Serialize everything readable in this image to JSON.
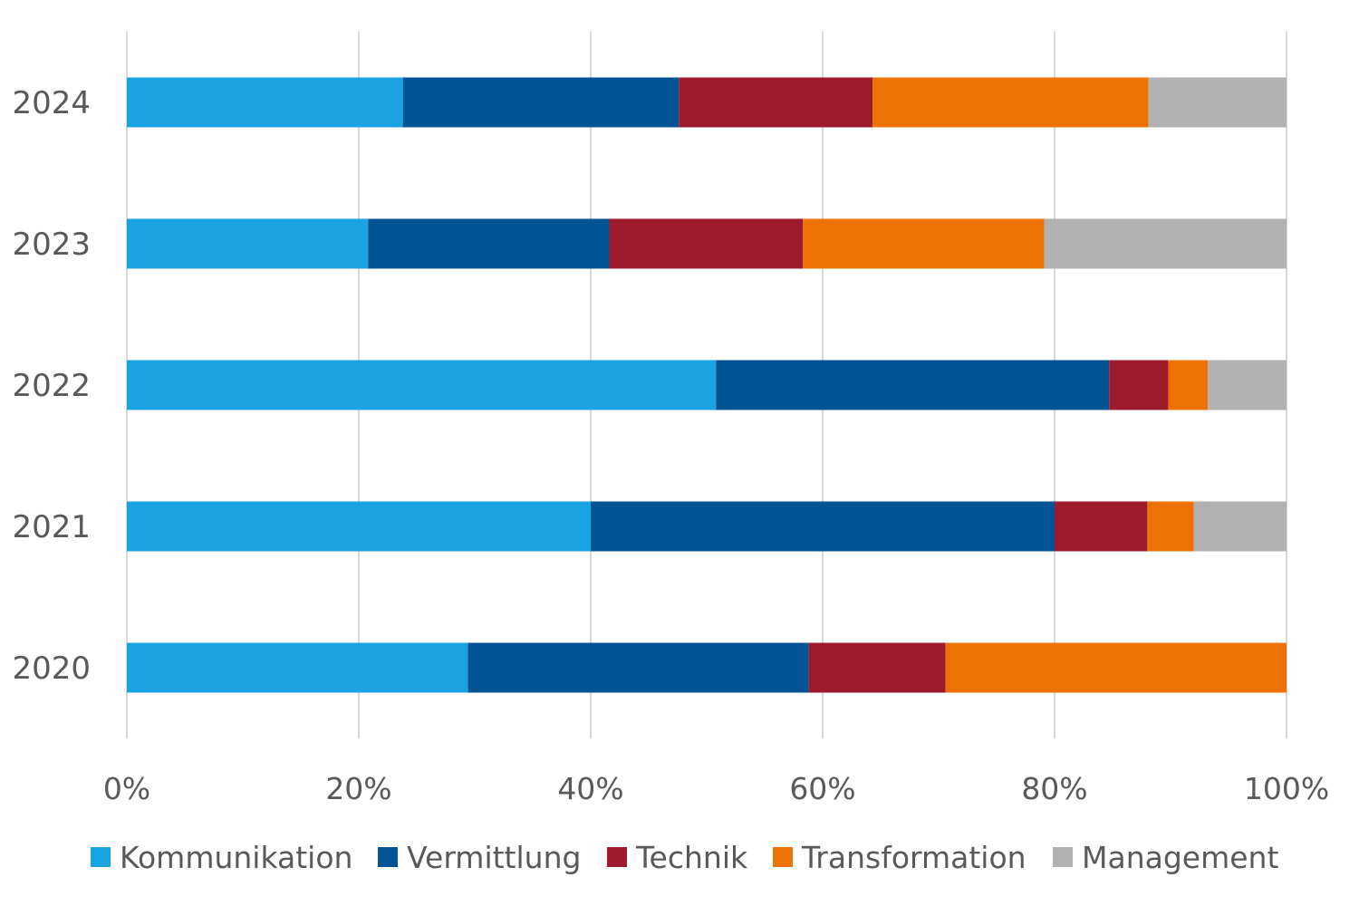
{
  "chart_data": {
    "type": "bar",
    "orientation": "horizontal",
    "stacked": true,
    "normalized": true,
    "categories": [
      "2024",
      "2023",
      "2022",
      "2021",
      "2020"
    ],
    "series": [
      {
        "name": "Kommunikation",
        "color": "#1AA3E3",
        "values": [
          23.8,
          20.8,
          50.8,
          40.0,
          29.4
        ]
      },
      {
        "name": "Vermittlung",
        "color": "#035494",
        "values": [
          23.8,
          20.8,
          33.9,
          40.0,
          29.4
        ]
      },
      {
        "name": "Technik",
        "color": "#9E1B2E",
        "values": [
          16.7,
          16.7,
          5.1,
          8.0,
          11.8
        ]
      },
      {
        "name": "Transformation",
        "color": "#EE7203",
        "values": [
          23.8,
          20.8,
          3.4,
          4.0,
          29.4
        ]
      },
      {
        "name": "Management",
        "color": "#B1B1B1",
        "values": [
          11.9,
          20.9,
          6.8,
          8.0,
          0.0
        ]
      }
    ],
    "xlim": [
      0,
      100
    ],
    "xticks": [
      "0%",
      "20%",
      "40%",
      "60%",
      "80%",
      "100%"
    ],
    "grid": true,
    "legend_position": "bottom"
  }
}
